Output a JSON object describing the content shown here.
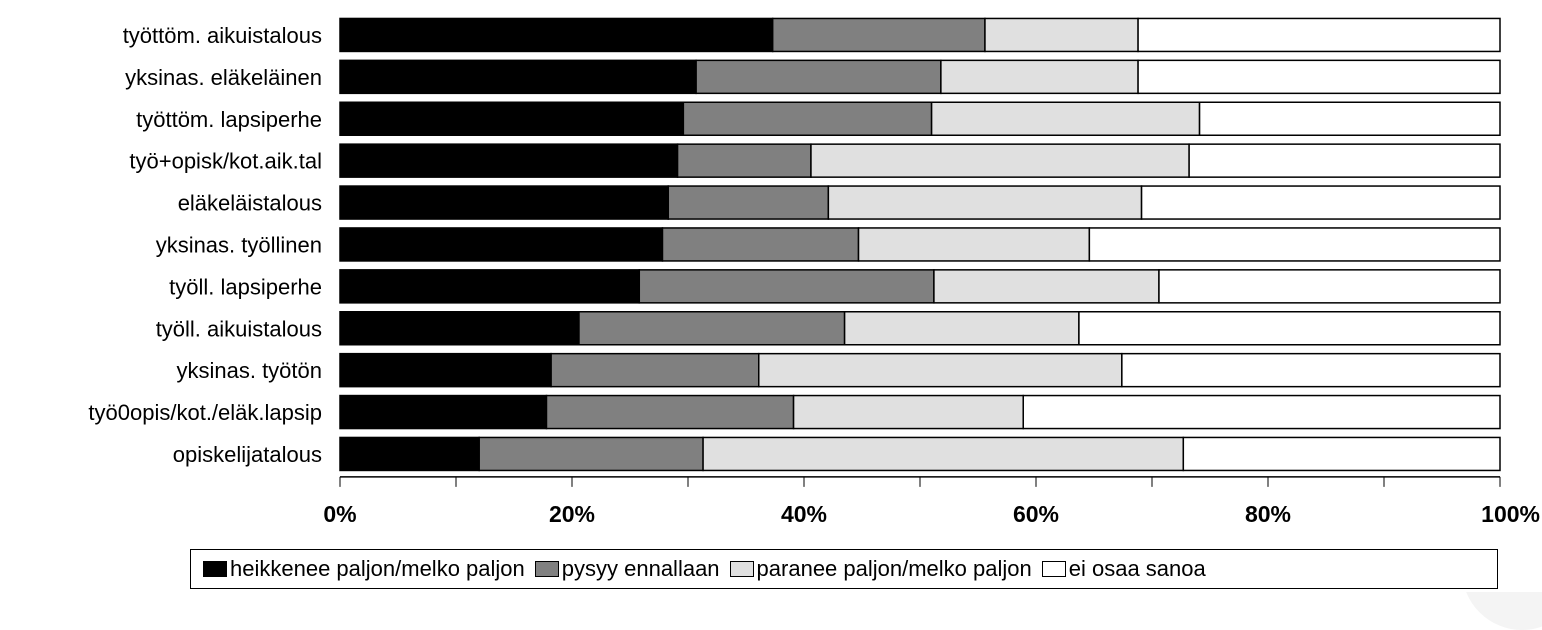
{
  "chart_data": {
    "type": "bar",
    "orientation": "horizontal",
    "stacked": "percent",
    "categories": [
      "työttöm. aikuistalous",
      "yksinas. eläkeläinen",
      "työttöm. lapsiperhe",
      "työ+opisk/kot.aik.tal",
      "eläkeläistalous",
      "yksinas. työllinen",
      "työll. lapsiperhe",
      "työll. aikuistalous",
      "yksinas. työtön",
      "työ0opis/kot./eläk.lapsip",
      "opiskelijatalous"
    ],
    "series": [
      {
        "name": "heikkenee paljon/melko paljon",
        "color": "#000000",
        "values": [
          37.3,
          30.7,
          29.6,
          29.1,
          28.3,
          27.8,
          25.8,
          20.6,
          18.2,
          17.8,
          12.0
        ]
      },
      {
        "name": "pysyy ennallaan",
        "color": "#808080",
        "values": [
          18.3,
          21.1,
          21.4,
          11.5,
          13.8,
          16.9,
          25.4,
          22.9,
          17.9,
          21.3,
          19.3
        ]
      },
      {
        "name": "paranee paljon/melko paljon",
        "color": "#e0e0e0",
        "values": [
          13.2,
          17.0,
          23.1,
          32.6,
          27.0,
          19.9,
          19.4,
          20.2,
          31.3,
          19.8,
          41.4
        ]
      },
      {
        "name": "ei osaa sanoa",
        "color": "#ffffff",
        "values": [
          31.2,
          31.2,
          25.9,
          26.8,
          30.9,
          35.4,
          29.4,
          36.3,
          32.6,
          41.1,
          27.3
        ]
      }
    ],
    "xlim": [
      0,
      100
    ],
    "xticks": [
      "0%",
      "20%",
      "40%",
      "60%",
      "80%",
      "100%"
    ],
    "title": "",
    "xlabel": "",
    "ylabel": "",
    "grid": false,
    "legend_position": "bottom"
  }
}
